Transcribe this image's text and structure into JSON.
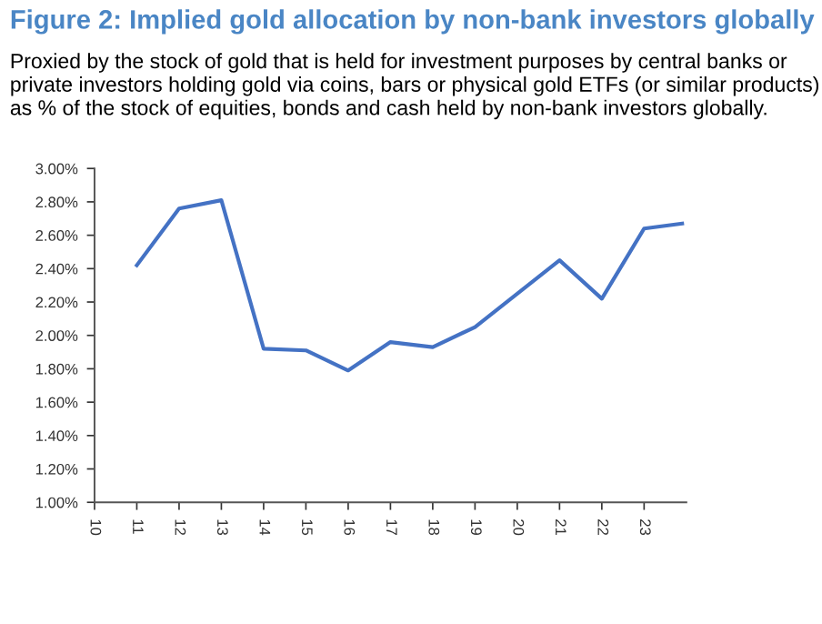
{
  "chart_data": {
    "type": "line",
    "title": "Figure 2: Implied gold allocation by non-bank investors globally",
    "subtitle": "Proxied by the stock of gold that is held for investment purposes by central banks or private investors holding gold via coins, bars or physical gold ETFs (or similar products) as % of the stock of equities, bonds and cash held by non-bank investors globally.",
    "x": [
      11,
      12,
      13,
      14,
      15,
      16,
      17,
      18,
      19,
      20,
      21,
      22,
      23,
      23.9
    ],
    "series": [
      {
        "color": "#4472c4",
        "values": [
          2.42,
          2.76,
          2.81,
          1.92,
          1.91,
          1.79,
          1.96,
          1.93,
          2.05,
          2.25,
          2.45,
          2.22,
          2.64,
          2.67
        ]
      }
    ],
    "xlim": [
      10,
      24
    ],
    "xticks": [
      10,
      11,
      12,
      13,
      14,
      15,
      16,
      17,
      18,
      19,
      20,
      21,
      22,
      23
    ],
    "ylim": [
      1.0,
      3.0
    ],
    "yticks": [
      {
        "value": 1.0,
        "label": "1.00%"
      },
      {
        "value": 1.2,
        "label": "1.20%"
      },
      {
        "value": 1.4,
        "label": "1.40%"
      },
      {
        "value": 1.6,
        "label": "1.60%"
      },
      {
        "value": 1.8,
        "label": "1.80%"
      },
      {
        "value": 2.0,
        "label": "2.00%"
      },
      {
        "value": 2.2,
        "label": "2.20%"
      },
      {
        "value": 2.4,
        "label": "2.40%"
      },
      {
        "value": 2.6,
        "label": "2.60%"
      },
      {
        "value": 2.8,
        "label": "2.80%"
      },
      {
        "value": 3.0,
        "label": "3.00%"
      }
    ],
    "grid": false,
    "legend": false,
    "marker": "none",
    "line_style": "solid"
  }
}
